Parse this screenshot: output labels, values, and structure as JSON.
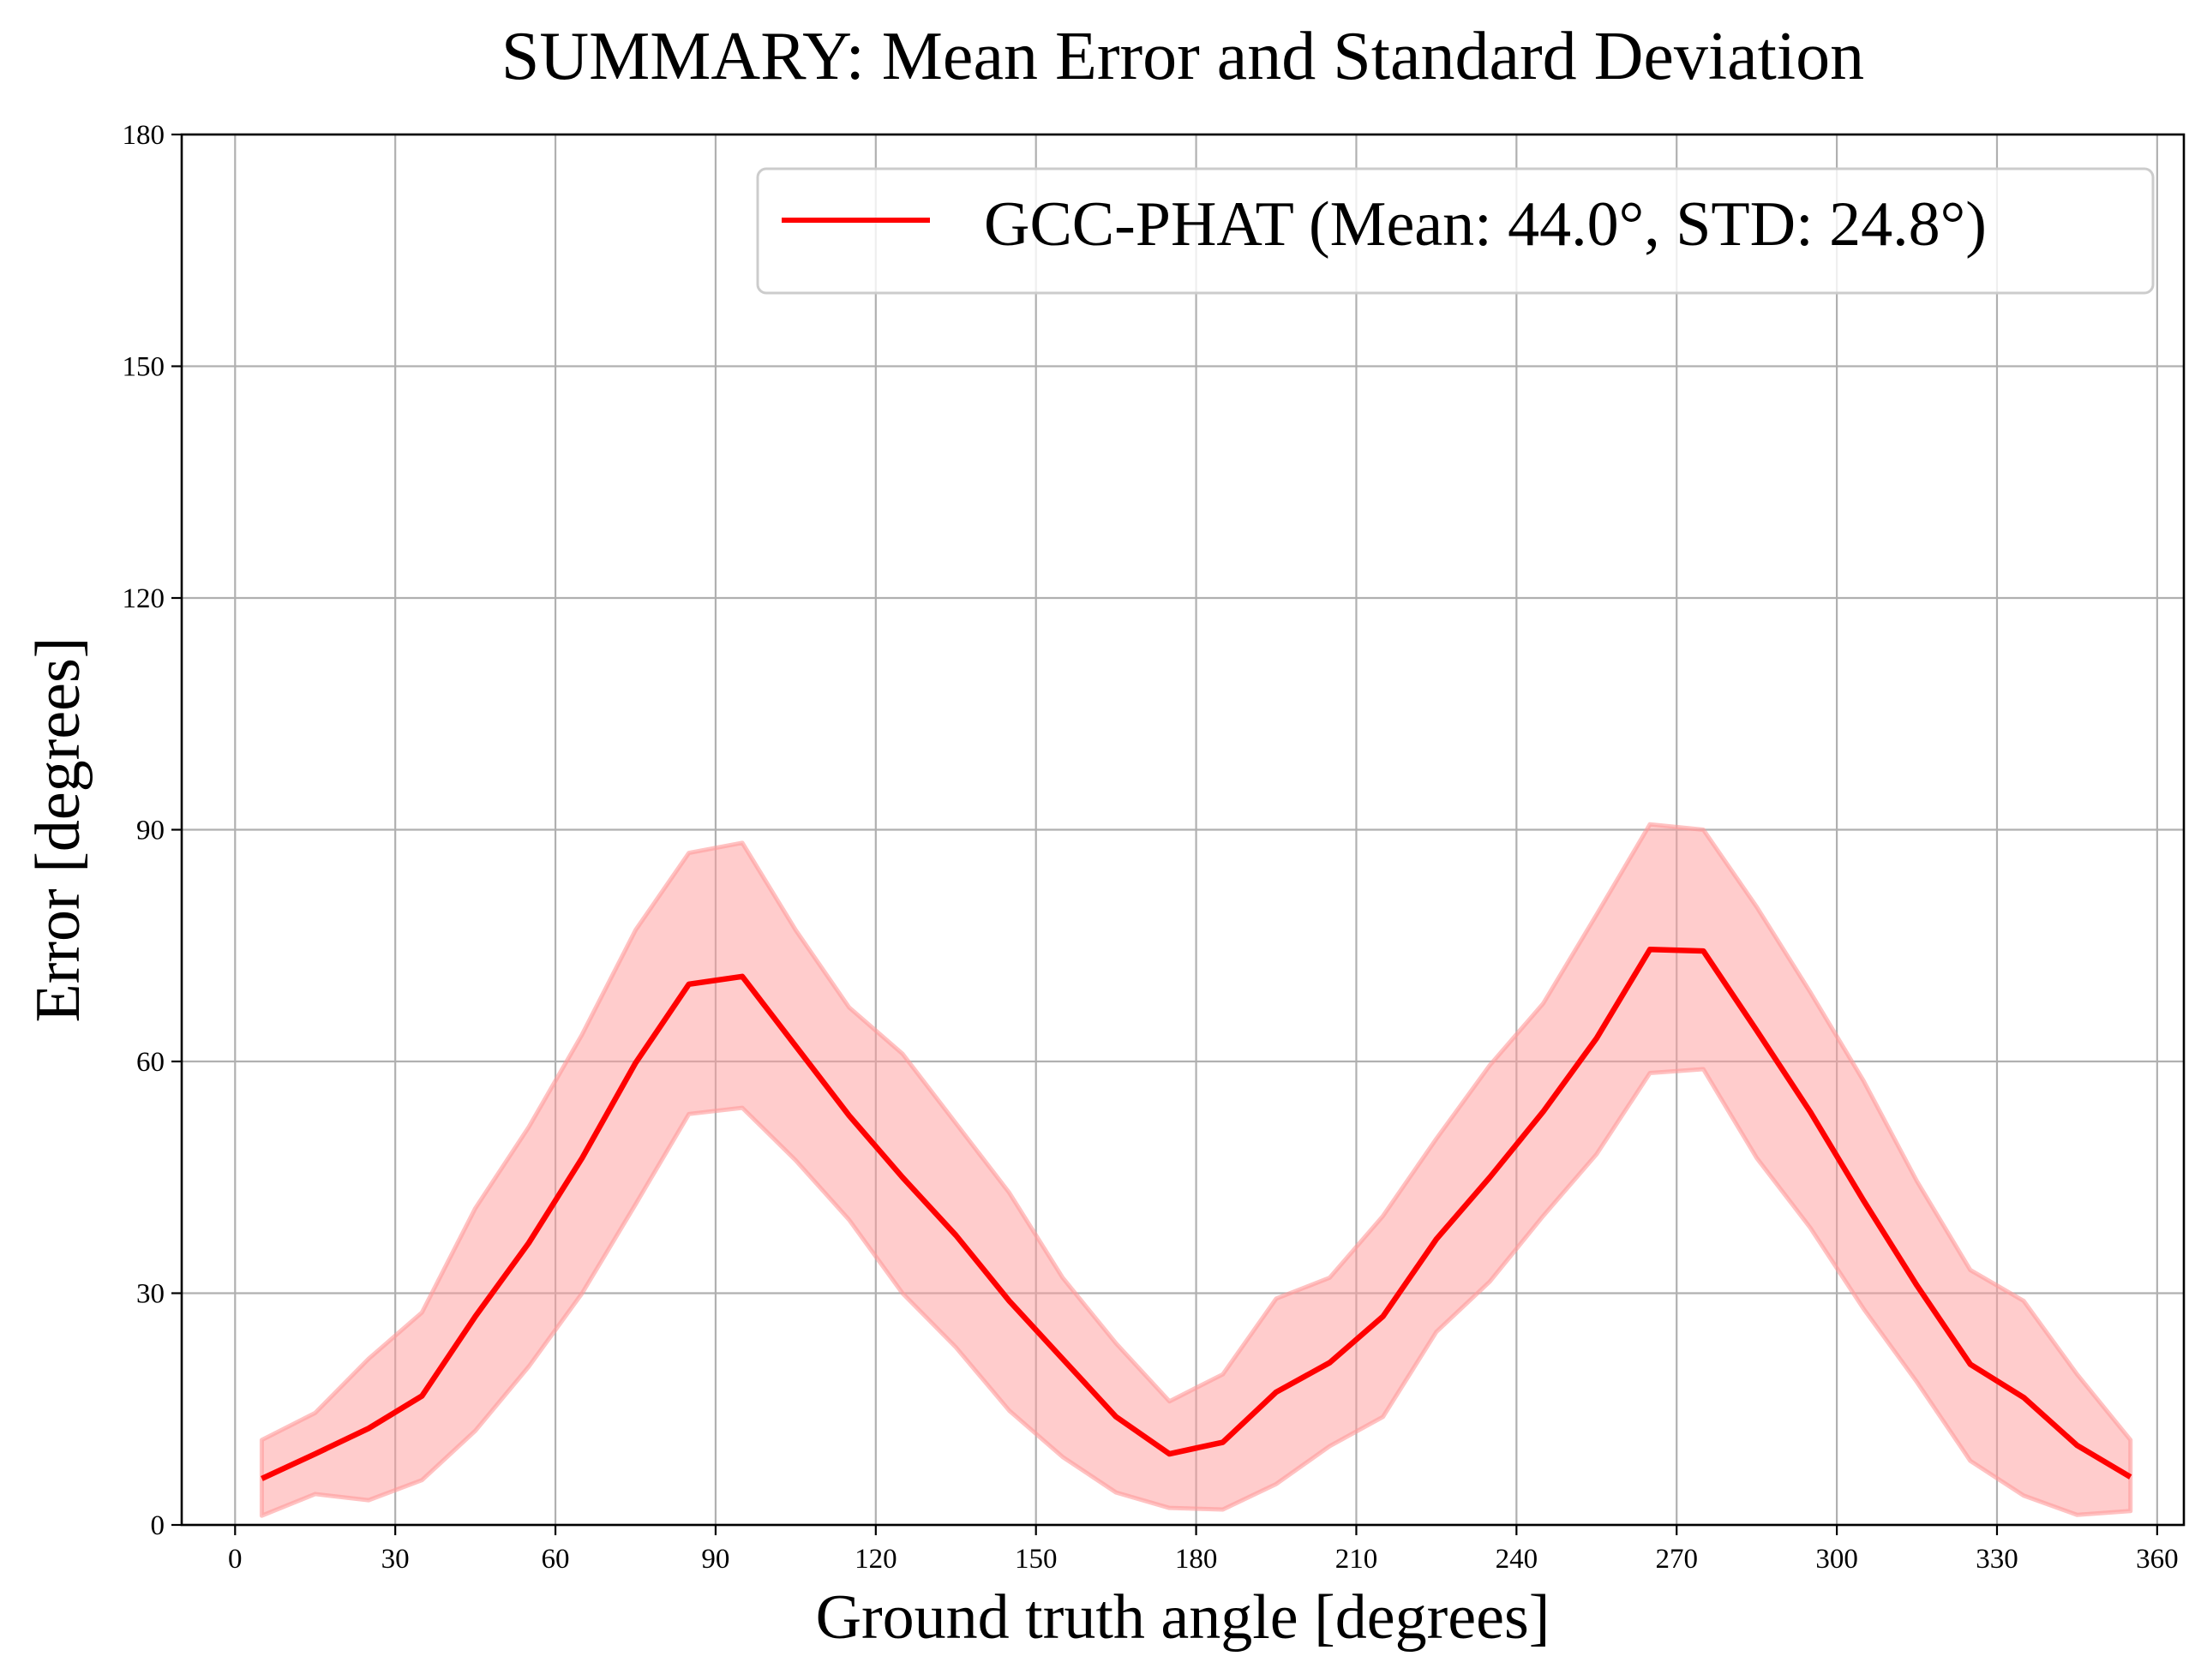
{
  "chart_data": {
    "type": "line",
    "title": "SUMMARY: Mean Error and Standard Deviation",
    "xlabel": "Ground truth angle [degrees]",
    "ylabel": "Error [degrees]",
    "xlim": [
      -10,
      365
    ],
    "ylim": [
      0,
      180
    ],
    "xticks": [
      0,
      30,
      60,
      90,
      120,
      150,
      180,
      210,
      240,
      270,
      300,
      330,
      360
    ],
    "yticks": [
      0,
      30,
      60,
      90,
      120,
      150,
      180
    ],
    "grid": true,
    "legend_position": "top-right",
    "x": [
      5,
      15,
      25,
      35,
      45,
      55,
      65,
      75,
      85,
      95,
      105,
      115,
      125,
      135,
      145,
      155,
      165,
      175,
      185,
      195,
      205,
      215,
      225,
      235,
      245,
      255,
      265,
      275,
      285,
      295,
      305,
      315,
      325,
      335,
      345,
      355
    ],
    "series": [
      {
        "name": "GCC-PHAT (Mean: 44.0°, STD: 24.8°)",
        "color": "#ff0000",
        "band_color": "#ff9999",
        "mean": [
          6.0,
          9.2,
          12.5,
          16.7,
          27.0,
          36.5,
          47.5,
          59.8,
          70.0,
          71.0,
          62.0,
          53.0,
          45.0,
          37.5,
          29.0,
          21.5,
          14.0,
          9.2,
          10.7,
          17.2,
          21.0,
          27.0,
          37.0,
          45.0,
          53.5,
          63.0,
          74.5,
          74.3,
          64.0,
          53.5,
          42.0,
          31.0,
          20.8,
          16.5,
          10.3,
          6.2
        ],
        "upper": [
          11.0,
          14.5,
          21.5,
          27.5,
          41.0,
          51.5,
          63.5,
          77.0,
          87.0,
          88.3,
          77.0,
          67.0,
          61.0,
          52.0,
          43.0,
          32.0,
          23.5,
          16.0,
          19.5,
          29.3,
          32.0,
          40.0,
          50.0,
          59.5,
          67.5,
          79.0,
          90.7,
          90.0,
          80.0,
          69.0,
          57.5,
          44.5,
          33.0,
          29.0,
          19.5,
          11.0
        ],
        "lower": [
          1.2,
          4.0,
          3.2,
          5.8,
          12.2,
          20.5,
          30.0,
          41.5,
          53.2,
          54.0,
          47.2,
          39.5,
          30.0,
          23.0,
          14.8,
          8.8,
          4.2,
          2.2,
          2.0,
          5.3,
          10.2,
          14.0,
          25.0,
          31.5,
          40.0,
          48.0,
          58.5,
          59.0,
          47.5,
          38.5,
          28.0,
          18.5,
          8.3,
          3.8,
          1.3,
          1.8
        ]
      }
    ]
  }
}
